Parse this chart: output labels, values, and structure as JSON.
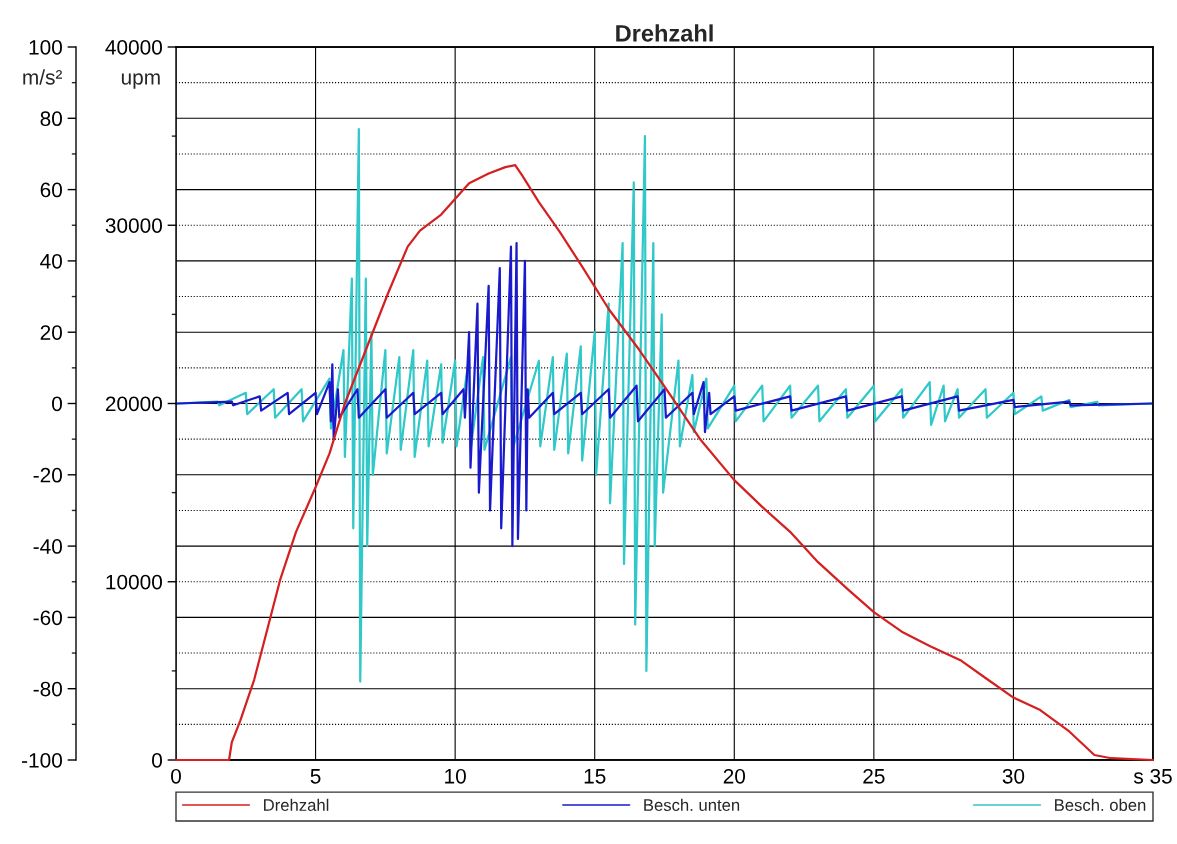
{
  "chart_data": {
    "type": "line",
    "title": "Drehzahl",
    "ylabel": "m/s²",
    "y2label": "upm",
    "xlim": [
      0,
      35
    ],
    "xticks": [
      0,
      5,
      10,
      15,
      20,
      25,
      30,
      {
        "value": 35,
        "label": "s 35"
      }
    ],
    "ylim": [
      -100,
      100
    ],
    "yticks": [
      -100,
      -80,
      -60,
      -40,
      -20,
      0,
      20,
      40,
      60,
      80,
      100
    ],
    "y2lim": [
      0,
      40000
    ],
    "y2ticks": [
      0,
      10000,
      20000,
      30000,
      40000
    ],
    "grid": true,
    "legend": "bottom",
    "series": [
      {
        "name": "Drehzahl",
        "color": "#d42020",
        "axis": "y2",
        "x": [
          0,
          1.9,
          2.0,
          2.3,
          2.8,
          3.3,
          3.73,
          4.3,
          5.0,
          5.5,
          6.05,
          6.8,
          7.6,
          8.3,
          8.74,
          9.5,
          10.5,
          11.2,
          11.8,
          12.15,
          12.4,
          13.0,
          13.76,
          14.5,
          15.5,
          16.6,
          17.7,
          18.8,
          20.0,
          21.0,
          22.0,
          23.0,
          24.1,
          25.0,
          26.0,
          27.0,
          28.1,
          29.0,
          30.0,
          30.96,
          32.0,
          32.9,
          33.5,
          35
        ],
        "values": [
          0,
          0,
          1000,
          2200,
          4500,
          7500,
          10100,
          12800,
          15300,
          17200,
          20000,
          23000,
          26200,
          28800,
          29700,
          30600,
          32360,
          32900,
          33260,
          33370,
          32800,
          31300,
          29600,
          27800,
          25300,
          23000,
          20500,
          17950,
          15700,
          14200,
          12800,
          11100,
          9530,
          8300,
          7200,
          6400,
          5600,
          4600,
          3500,
          2800,
          1600,
          280,
          100,
          0
        ]
      },
      {
        "name": "Besch. unten",
        "color": "#1a1acc",
        "x": [
          0,
          0.05,
          2,
          2.05,
          3,
          3.05,
          4,
          4.05,
          5,
          5.05,
          5.5,
          5.55,
          5.6,
          5.65,
          5.8,
          5.85,
          6.5,
          6.55,
          7.5,
          7.55,
          8.5,
          8.55,
          9.5,
          9.55,
          10.3,
          10.35,
          10.5,
          10.55,
          10.8,
          10.85,
          11.2,
          11.25,
          11.6,
          11.65,
          12.0,
          12.05,
          12.2,
          12.25,
          12.5,
          12.55,
          12.6,
          12.65,
          13.5,
          13.55,
          14.5,
          14.55,
          15.5,
          15.55,
          16.5,
          16.55,
          17.5,
          17.55,
          18.5,
          18.55,
          18.9,
          18.95,
          19.1,
          19.15,
          20,
          20.05,
          22,
          22.05,
          24,
          24.05,
          26,
          26.05,
          28,
          28.05,
          30,
          30.05,
          32,
          32.05,
          35
        ],
        "values": [
          0,
          0,
          0.5,
          -0.5,
          2,
          -2,
          3,
          -3,
          3,
          -3,
          6,
          -5,
          11,
          -10,
          4,
          -4,
          4,
          -4,
          4,
          -4,
          3,
          -3,
          3,
          -3,
          4,
          -4,
          20,
          -18,
          28,
          -25,
          33,
          -30,
          38,
          -35,
          44,
          -40,
          45,
          -38,
          40,
          -30,
          4,
          -4,
          3,
          -3,
          3,
          -3,
          4,
          -4,
          5,
          -5,
          4,
          -4,
          3,
          -3,
          6,
          -8,
          3,
          -3,
          2,
          -2,
          2,
          -2,
          2,
          -2,
          2,
          -2,
          2,
          -2,
          1,
          -1,
          0.5,
          -0.5,
          0
        ]
      },
      {
        "name": "Besch. oben",
        "color": "#30c8c8",
        "x": [
          0,
          0.05,
          1.5,
          1.55,
          2.5,
          2.55,
          3.5,
          3.55,
          4.5,
          4.55,
          5.5,
          5.55,
          6.0,
          6.05,
          6.3,
          6.35,
          6.55,
          6.6,
          6.8,
          6.85,
          7.0,
          7.05,
          7.5,
          7.55,
          8.0,
          8.05,
          8.5,
          8.55,
          9.0,
          9.05,
          9.5,
          9.55,
          10.0,
          10.05,
          10.5,
          10.55,
          11.0,
          11.05,
          12.0,
          12.05,
          13.0,
          13.05,
          13.5,
          13.55,
          14.0,
          14.05,
          14.5,
          14.55,
          15.0,
          15.05,
          15.5,
          15.55,
          16.0,
          16.05,
          16.4,
          16.45,
          16.8,
          16.85,
          17.1,
          17.15,
          17.4,
          17.45,
          18.0,
          18.05,
          18.5,
          18.55,
          19.0,
          19.05,
          20.0,
          20.05,
          21.0,
          21.05,
          22.0,
          22.05,
          23.0,
          23.05,
          24.0,
          24.05,
          25.0,
          25.05,
          26.0,
          26.05,
          27.0,
          27.05,
          27.5,
          27.55,
          28.0,
          28.05,
          29.0,
          29.05,
          30.0,
          30.05,
          31.0,
          31.05,
          32.0,
          32.05,
          33.0,
          33.05,
          35
        ],
        "values": [
          0,
          0,
          0.5,
          -0.5,
          3,
          -3,
          4,
          -4,
          4,
          -5,
          7,
          -7,
          15,
          -15,
          35,
          -35,
          77,
          -78,
          35,
          -40,
          20,
          -20,
          15,
          -14,
          13,
          -13,
          15,
          -15,
          12,
          -12,
          11,
          -11,
          12,
          -12,
          13,
          -13,
          13,
          -13,
          13,
          -13,
          12,
          -12,
          13,
          -13,
          14,
          -14,
          16,
          -16,
          20,
          -20,
          28,
          -28,
          45,
          -45,
          62,
          -62,
          75,
          -75,
          45,
          -40,
          25,
          -25,
          12,
          -12,
          8,
          -8,
          7,
          -7,
          5,
          -5,
          5,
          -5,
          5,
          -4,
          5,
          -5,
          4,
          -4,
          5,
          -5,
          4,
          -4,
          6,
          -6,
          5,
          -5,
          4,
          -4,
          4,
          -4,
          3,
          -3,
          2,
          -2,
          1,
          -1,
          0.5,
          -0.5,
          0
        ]
      }
    ]
  }
}
